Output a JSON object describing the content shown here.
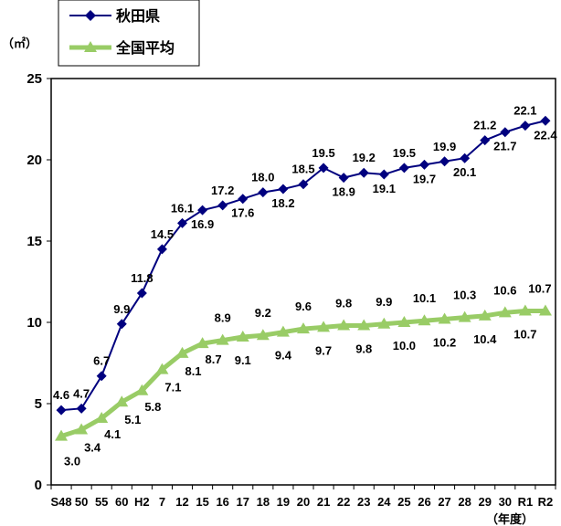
{
  "chart_data": {
    "type": "line",
    "ylabel": "（㎡）",
    "xlabel": "（年度）",
    "ylim": [
      0,
      25
    ],
    "yticks": [
      0,
      5,
      10,
      15,
      20,
      25
    ],
    "grid": false,
    "legend_position": "top-left",
    "categories": [
      "S48",
      "50",
      "55",
      "60",
      "H2",
      "7",
      "12",
      "15",
      "16",
      "17",
      "18",
      "19",
      "20",
      "21",
      "22",
      "23",
      "24",
      "25",
      "26",
      "27",
      "28",
      "29",
      "30",
      "R1",
      "R2"
    ],
    "series": [
      {
        "name": "秋田県",
        "color": "#00007f",
        "marker": "diamond",
        "values": [
          4.6,
          4.7,
          6.7,
          9.9,
          11.8,
          14.5,
          16.1,
          16.9,
          17.2,
          17.6,
          18.0,
          18.2,
          18.5,
          19.5,
          18.9,
          19.2,
          19.1,
          19.5,
          19.7,
          19.9,
          20.1,
          21.2,
          21.7,
          22.1,
          22.4
        ],
        "labels": [
          "4.6",
          "4.7",
          "6.7",
          "9.9",
          "11.8",
          "14.5",
          "16.1",
          "16.9",
          "17.2",
          "17.6",
          "18.0",
          "18.2",
          "18.5",
          "19.5",
          "18.9",
          "19.2",
          "19.1",
          "19.5",
          "19.7",
          "19.9",
          "20.1",
          "21.2",
          "21.7",
          "22.1",
          "22.4"
        ]
      },
      {
        "name": "全国平均",
        "color": "#99cc66",
        "marker": "triangle",
        "values": [
          3.0,
          3.4,
          4.1,
          5.1,
          5.8,
          7.1,
          8.1,
          8.7,
          8.9,
          9.1,
          9.2,
          9.4,
          9.6,
          9.7,
          9.8,
          9.8,
          9.9,
          10.0,
          10.1,
          10.2,
          10.3,
          10.4,
          10.6,
          10.7,
          10.7
        ],
        "labels": [
          "3.0",
          "3.4",
          "4.1",
          "5.1",
          "5.8",
          "7.1",
          "8.1",
          "8.7",
          "8.9",
          "9.1",
          "9.2",
          "9.4",
          "9.6",
          "9.7",
          "9.8",
          "9.8",
          "9.9",
          "10.0",
          "10.1",
          "10.2",
          "10.3",
          "10.4",
          "10.6",
          "10.7",
          "10.7"
        ]
      }
    ]
  }
}
